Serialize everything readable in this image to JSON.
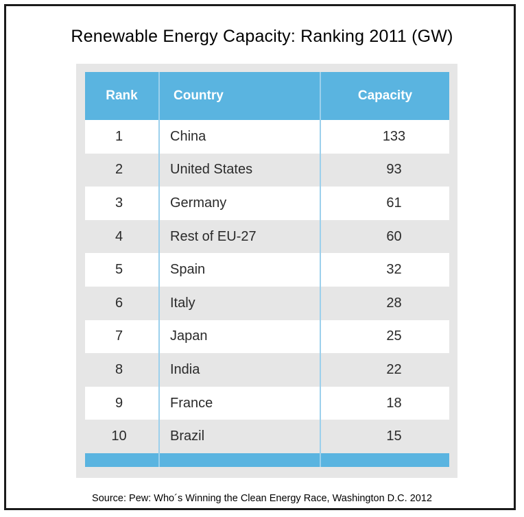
{
  "title": "Renewable Energy Capacity: Ranking 2011 (GW)",
  "columns": {
    "rank": "Rank",
    "country": "Country",
    "capacity": "Capacity"
  },
  "rows": [
    {
      "rank": "1",
      "country": "China",
      "capacity": "133"
    },
    {
      "rank": "2",
      "country": "United States",
      "capacity": "93"
    },
    {
      "rank": "3",
      "country": "Germany",
      "capacity": "61"
    },
    {
      "rank": "4",
      "country": "Rest of EU-27",
      "capacity": "60"
    },
    {
      "rank": "5",
      "country": "Spain",
      "capacity": "32"
    },
    {
      "rank": "6",
      "country": "Italy",
      "capacity": "28"
    },
    {
      "rank": "7",
      "country": "Japan",
      "capacity": "25"
    },
    {
      "rank": "8",
      "country": "India",
      "capacity": "22"
    },
    {
      "rank": "9",
      "country": "France",
      "capacity": "18"
    },
    {
      "rank": "10",
      "country": "Brazil",
      "capacity": "15"
    }
  ],
  "source": "Source: Pew:  Who´s Winning the Clean Energy Race, Washington D.C. 2012",
  "colors": {
    "header": "#5ab4e0",
    "stripe": "#e6e6e6",
    "divider": "#9cd0ec",
    "border": "#1a1a1a"
  }
}
